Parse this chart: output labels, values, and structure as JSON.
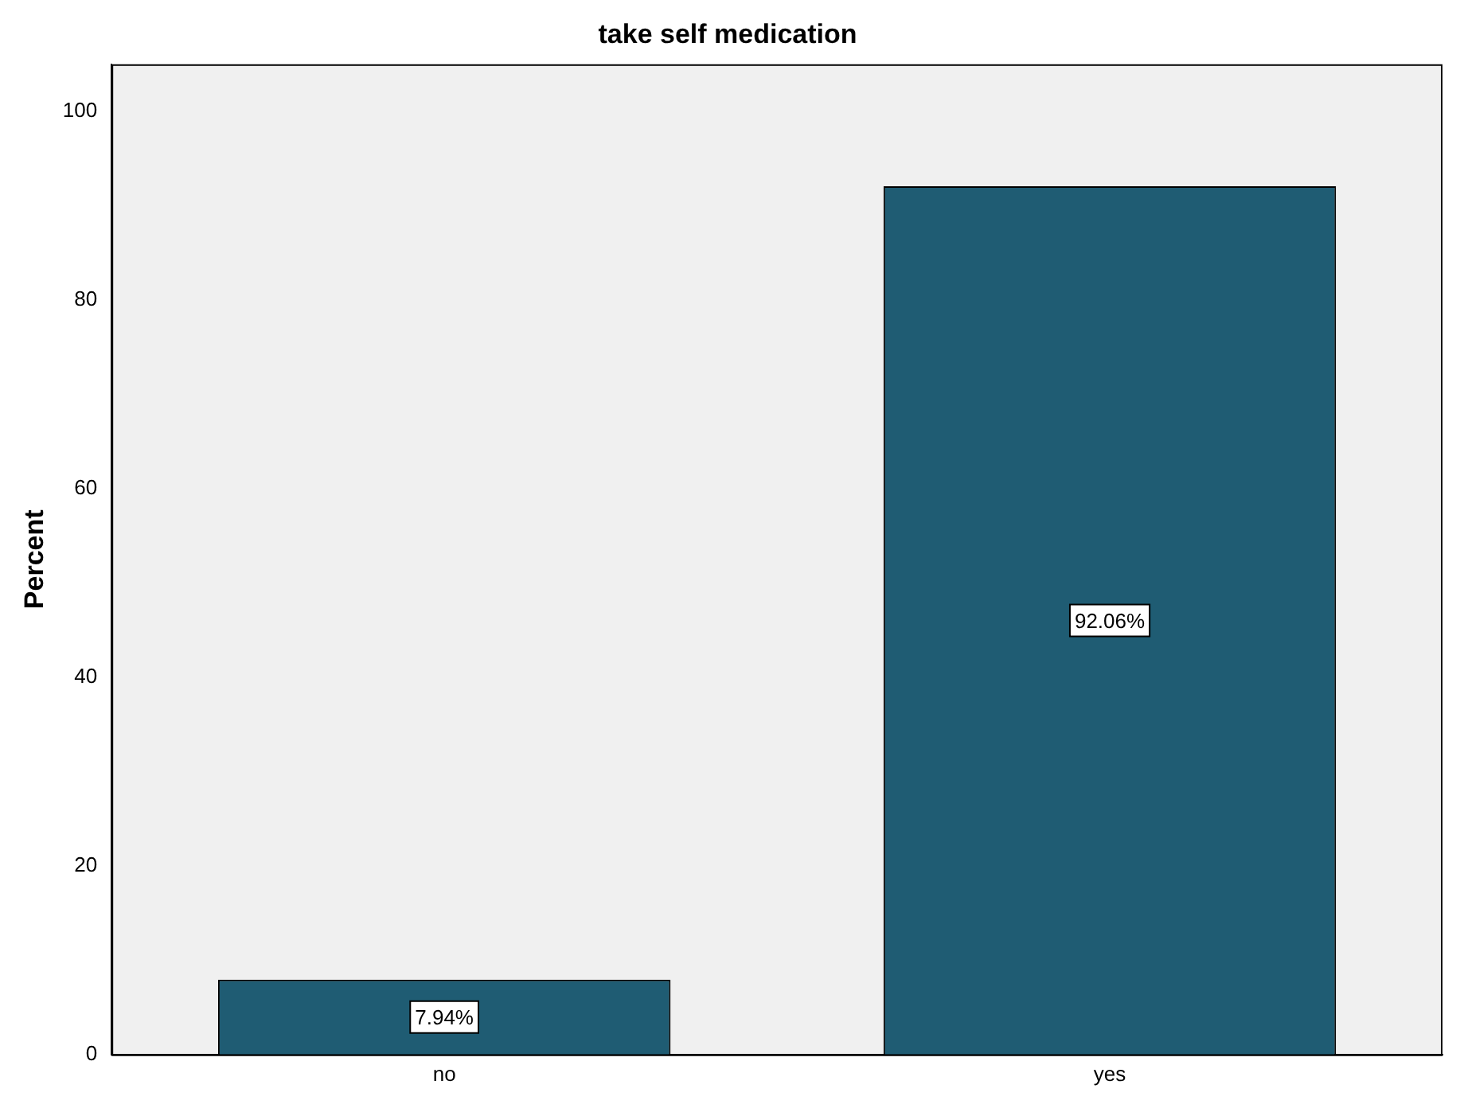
{
  "chart_data": {
    "type": "bar",
    "title": "take self medication",
    "ylabel": "Percent",
    "categories": [
      "no",
      "yes"
    ],
    "values": [
      7.94,
      92.06
    ],
    "value_labels": [
      "7.94%",
      "92.06%"
    ],
    "color": "#1f5c73",
    "ylim": [
      0,
      105
    ],
    "yticks": [
      0,
      20,
      40,
      60,
      80,
      100
    ],
    "grid": false,
    "legend": false
  }
}
